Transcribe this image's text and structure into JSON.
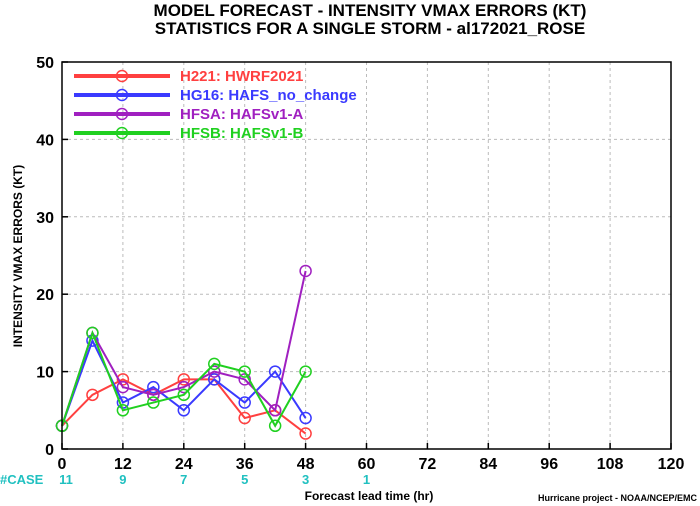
{
  "chart_data": {
    "type": "line",
    "title": "MODEL FORECAST - INTENSITY VMAX ERRORS (KT)",
    "subtitle": "STATISTICS FOR A SINGLE STORM - al172021_ROSE",
    "xlabel": "Forecast lead time (hr)",
    "ylabel": "INTENSITY VMAX ERRORS (KT)",
    "xlim": [
      0,
      120
    ],
    "ylim": [
      0,
      50
    ],
    "xticks": [
      "0",
      "12",
      "24",
      "36",
      "48",
      "60",
      "72",
      "84",
      "96",
      "108",
      "120"
    ],
    "yticks": [
      "0",
      "10",
      "20",
      "30",
      "40",
      "50"
    ],
    "grid": true,
    "legend_position": "top-left",
    "case_label": "#CASE",
    "cases": [
      {
        "x": 0,
        "n": "11"
      },
      {
        "x": 12,
        "n": "9"
      },
      {
        "x": 24,
        "n": "7"
      },
      {
        "x": 36,
        "n": "5"
      },
      {
        "x": 48,
        "n": "3"
      },
      {
        "x": 60,
        "n": "1"
      }
    ],
    "series": [
      {
        "name": "H221: HWRF2021",
        "color": "#ff4040",
        "x": [
          0,
          6,
          12,
          18,
          24,
          30,
          36,
          42,
          48
        ],
        "values": [
          3,
          7,
          9,
          7,
          9,
          9,
          4,
          5,
          2
        ]
      },
      {
        "name": "HG16: HAFS_no_change",
        "color": "#3a3aff",
        "x": [
          0,
          6,
          12,
          18,
          24,
          30,
          36,
          42,
          48
        ],
        "values": [
          3,
          14,
          6,
          8,
          5,
          9,
          6,
          10,
          4
        ]
      },
      {
        "name": "HFSA: HAFSv1-A",
        "color": "#a020c0",
        "x": [
          0,
          6,
          12,
          18,
          24,
          30,
          36,
          42,
          48
        ],
        "values": [
          3,
          15,
          8,
          7,
          8,
          10,
          9,
          5,
          23
        ]
      },
      {
        "name": "HFSB: HAFSv1-B",
        "color": "#20d020",
        "x": [
          0,
          6,
          12,
          18,
          24,
          30,
          36,
          42,
          48
        ],
        "values": [
          3,
          15,
          5,
          6,
          7,
          11,
          10,
          3,
          10
        ]
      }
    ],
    "credit": "Hurricane project - NOAA/NCEP/EMC",
    "colors": {
      "case_text": "#20c0c0",
      "case_label": "#20c0c0"
    }
  }
}
